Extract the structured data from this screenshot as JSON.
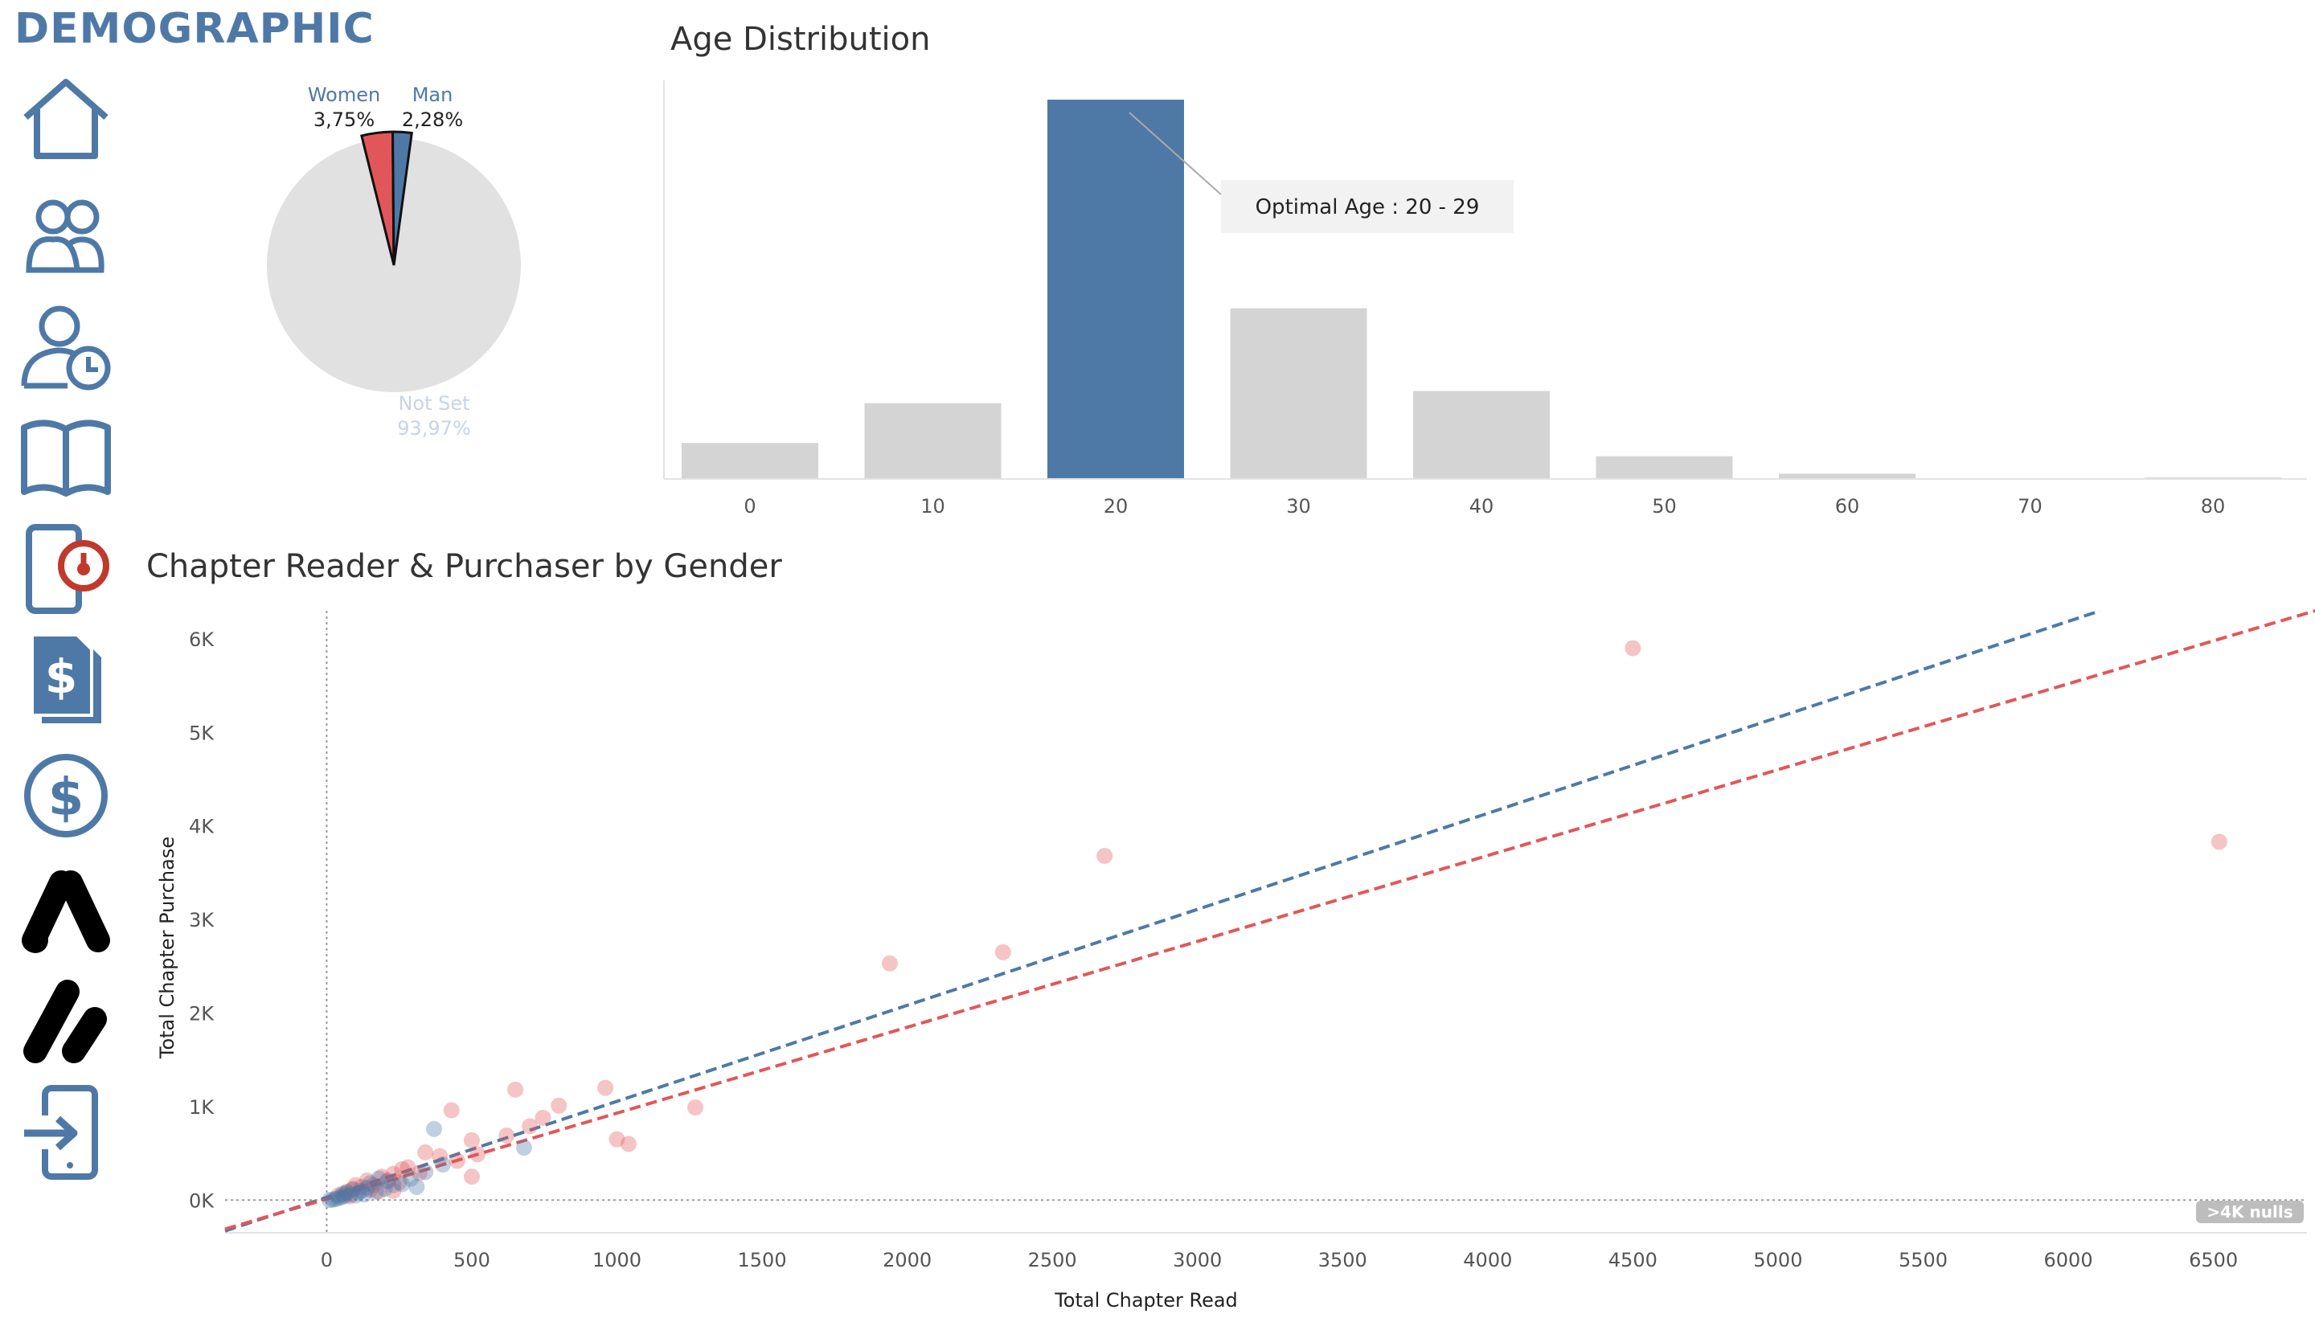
{
  "header": {
    "title": "DEMOGRAPHIC"
  },
  "sidebar": {
    "items": [
      {
        "name": "home-icon"
      },
      {
        "name": "users-icon"
      },
      {
        "name": "user-clock-icon"
      },
      {
        "name": "open-book-icon"
      },
      {
        "name": "tablet-alarm-icon"
      },
      {
        "name": "dollar-document-icon"
      },
      {
        "name": "dollar-circle-icon"
      },
      {
        "name": "google-ads-icon"
      },
      {
        "name": "ads-logo-icon"
      },
      {
        "name": "mobile-login-icon"
      }
    ]
  },
  "colors": {
    "accent": "#4e79a7",
    "women": "#e15759",
    "not_set": "#e1e1e1",
    "bar_grey": "#d4d4d4"
  },
  "chart_data": [
    {
      "type": "pie",
      "slices": [
        {
          "label": "Women",
          "percent_label": "3,75%",
          "value": 3.75,
          "color": "#e15759"
        },
        {
          "label": "Man",
          "percent_label": "2,28%",
          "value": 2.28,
          "color": "#4e79a7"
        },
        {
          "label": "Not Set",
          "percent_label": "93,97%",
          "value": 93.97,
          "color": "#e1e1e1"
        }
      ]
    },
    {
      "type": "bar",
      "title": "Age Distribution",
      "categories": [
        "0",
        "10",
        "20",
        "30",
        "40",
        "50",
        "60",
        "70",
        "80"
      ],
      "values": [
        95,
        200,
        1000,
        450,
        232,
        60,
        14,
        2,
        4
      ],
      "highlight": "20",
      "ylim": [
        0,
        1000
      ],
      "annotation": "Optimal Age : 20 - 29"
    },
    {
      "type": "scatter",
      "title": "Chapter Reader & Purchaser by Gender",
      "xlabel": "Total Chapter Read",
      "ylabel": "Total Chapter Purchase",
      "xlim": [
        -350,
        6850
      ],
      "ylim": [
        -350,
        6300
      ],
      "xticks": [
        0,
        500,
        1000,
        1500,
        2000,
        2500,
        3000,
        3500,
        4000,
        4500,
        5000,
        5500,
        6000,
        6500
      ],
      "yticks": [
        {
          "value": 0,
          "label": "0K"
        },
        {
          "value": 1000,
          "label": "1K"
        },
        {
          "value": 2000,
          "label": "2K"
        },
        {
          "value": 3000,
          "label": "3K"
        },
        {
          "value": 4000,
          "label": "4K"
        },
        {
          "value": 5000,
          "label": "5K"
        },
        {
          "value": 6000,
          "label": "6K"
        }
      ],
      "nulls_badge": ">4K nulls",
      "trend_lines": [
        {
          "series": "Man",
          "color": "#4e79a7",
          "from": [
            -350,
            -330
          ],
          "to": [
            6110,
            6300
          ]
        },
        {
          "series": "Women",
          "color": "#e15759",
          "from": [
            -350,
            -310
          ],
          "to": [
            6850,
            6300
          ]
        }
      ],
      "series": [
        {
          "name": "Women",
          "color": "#e15759",
          "points": [
            [
              4500,
              5900
            ],
            [
              6520,
              3830
            ],
            [
              2680,
              3680
            ],
            [
              2330,
              2650
            ],
            [
              1940,
              2530
            ],
            [
              1270,
              990
            ],
            [
              960,
              1200
            ],
            [
              650,
              1180
            ],
            [
              430,
              960
            ],
            [
              1000,
              650
            ],
            [
              1040,
              600
            ],
            [
              800,
              1010
            ],
            [
              745,
              880
            ],
            [
              700,
              790
            ],
            [
              500,
              640
            ],
            [
              520,
              490
            ],
            [
              500,
              250
            ],
            [
              620,
              690
            ],
            [
              390,
              470
            ],
            [
              340,
              510
            ],
            [
              280,
              350
            ],
            [
              230,
              280
            ],
            [
              250,
              190
            ],
            [
              190,
              250
            ],
            [
              160,
              160
            ],
            [
              140,
              210
            ],
            [
              120,
              140
            ],
            [
              100,
              160
            ],
            [
              90,
              120
            ],
            [
              70,
              90
            ],
            [
              60,
              60
            ],
            [
              40,
              50
            ],
            [
              180,
              90
            ],
            [
              210,
              210
            ],
            [
              150,
              110
            ],
            [
              80,
              40
            ],
            [
              230,
              100
            ],
            [
              320,
              290
            ],
            [
              450,
              420
            ],
            [
              260,
              330
            ]
          ]
        },
        {
          "name": "Man",
          "color": "#4e79a7",
          "points": [
            [
              370,
              760
            ],
            [
              680,
              560
            ],
            [
              310,
              140
            ],
            [
              290,
              230
            ],
            [
              230,
              160
            ],
            [
              200,
              120
            ],
            [
              180,
              230
            ],
            [
              150,
              180
            ],
            [
              120,
              100
            ],
            [
              110,
              80
            ],
            [
              90,
              110
            ],
            [
              80,
              60
            ],
            [
              70,
              80
            ],
            [
              60,
              40
            ],
            [
              50,
              30
            ],
            [
              40,
              20
            ],
            [
              30,
              10
            ],
            [
              20,
              5
            ],
            [
              10,
              0
            ],
            [
              100,
              50
            ],
            [
              140,
              130
            ],
            [
              170,
              90
            ],
            [
              210,
              200
            ],
            [
              260,
              170
            ],
            [
              340,
              300
            ],
            [
              400,
              380
            ],
            [
              130,
              60
            ],
            [
              55,
              70
            ]
          ]
        }
      ]
    }
  ]
}
